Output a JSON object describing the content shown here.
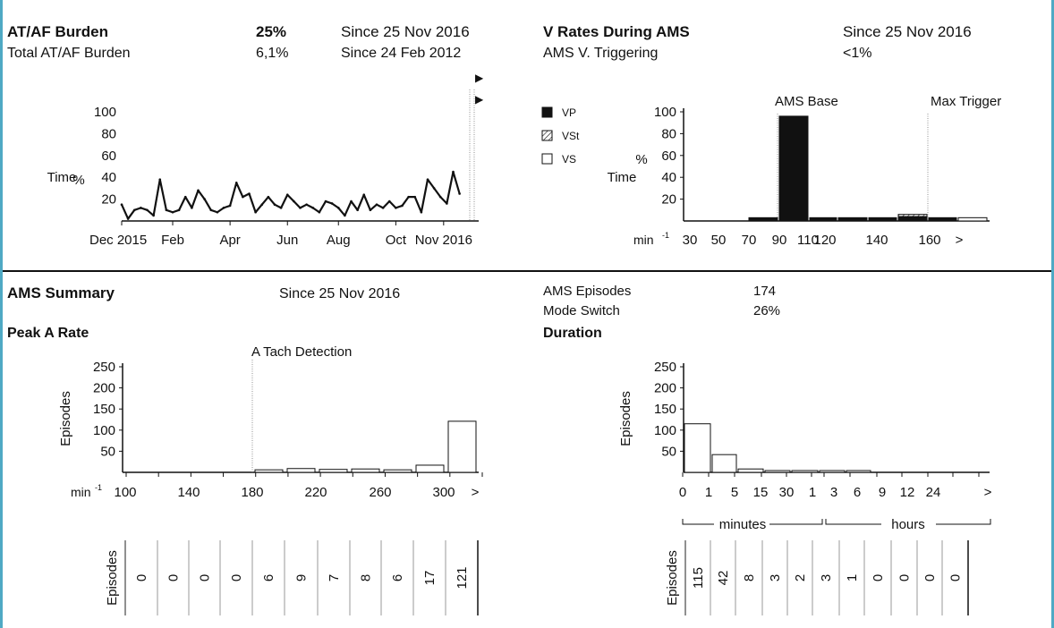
{
  "headers": {
    "burden_title": "AT/AF Burden",
    "burden_value": "25%",
    "burden_since": "Since 25 Nov 2016",
    "total_label": "Total AT/AF Burden",
    "total_value": "6,1%",
    "total_since": "Since 24 Feb 2012",
    "vrates_title": "V Rates During AMS",
    "vrates_since": "Since 25 Nov 2016",
    "trigger_label": "AMS V. Triggering",
    "trigger_value": "<1%",
    "ams_summary_title": "AMS Summary",
    "ams_summary_since": "Since 25 Nov 2016",
    "ams_episodes_label": "AMS Episodes",
    "ams_episodes_value": "174",
    "mode_switch_label": "Mode Switch",
    "mode_switch_value": "26%",
    "peak_title": "Peak A Rate",
    "duration_title": "Duration"
  },
  "chart_data": [
    {
      "type": "line",
      "ylabel": "% Time",
      "ylabel_top": "%",
      "ylabel_bottom": "Time",
      "ylim": [
        0,
        100
      ],
      "yticks": [
        20,
        40,
        60,
        80,
        100
      ],
      "xlim": [
        0,
        56
      ],
      "x_ticks": [
        {
          "x": 0,
          "label": "Dec 2015"
        },
        {
          "x": 8,
          "label": "Feb"
        },
        {
          "x": 17,
          "label": "Apr"
        },
        {
          "x": 26,
          "label": "Jun"
        },
        {
          "x": 34,
          "label": "Aug"
        },
        {
          "x": 43,
          "label": "Oct"
        },
        {
          "x": 50.5,
          "label": "Nov 2016"
        }
      ],
      "x": [
        0,
        1,
        2,
        3,
        4,
        5,
        6,
        7,
        8,
        9,
        10,
        11,
        12,
        13,
        14,
        15,
        16,
        17,
        18,
        19,
        20,
        21,
        22,
        23,
        24,
        25,
        26,
        27,
        28,
        29,
        30,
        31,
        32,
        33,
        34,
        35,
        36,
        37,
        38,
        39,
        40,
        41,
        42,
        43,
        44,
        45,
        46,
        47,
        48,
        49,
        50,
        51,
        52,
        53,
        54,
        55
      ],
      "values": [
        15,
        2,
        10,
        12,
        10,
        5,
        38,
        10,
        8,
        10,
        22,
        12,
        28,
        20,
        10,
        8,
        12,
        14,
        35,
        22,
        25,
        8,
        15,
        22,
        15,
        12,
        24,
        18,
        12,
        15,
        12,
        8,
        18,
        16,
        12,
        5,
        18,
        10,
        24,
        10,
        15,
        12,
        18,
        12,
        14,
        22,
        22,
        8,
        38,
        30,
        22,
        16,
        45,
        25,
        0,
        0
      ],
      "n_points": 54,
      "markers": [
        "▶",
        "▶"
      ]
    },
    {
      "type": "bar",
      "title": "V Rates During AMS",
      "ylabel_top": "%",
      "ylabel_bottom": "Time",
      "ylim": [
        0,
        100
      ],
      "yticks": [
        20,
        40,
        60,
        80,
        100
      ],
      "unit": "min-1",
      "tick_labels": [
        "30",
        "50",
        "70",
        "90",
        "110",
        "120",
        "140",
        "160",
        ">"
      ],
      "legend": [
        {
          "name": "VP",
          "style": "solid"
        },
        {
          "name": "VSt",
          "style": "hatched"
        },
        {
          "name": "VS",
          "style": "open"
        }
      ],
      "bars": [
        {
          "from": 70,
          "to": 80,
          "vp": 3,
          "vst": 0,
          "vs": 0
        },
        {
          "from": 80,
          "to": 90,
          "vp": 96,
          "vst": 0,
          "vs": 0
        },
        {
          "from": 90,
          "to": 100,
          "vp": 3,
          "vst": 0,
          "vs": 0
        },
        {
          "from": 100,
          "to": 110,
          "vp": 3,
          "vst": 0,
          "vs": 0
        },
        {
          "from": 110,
          "to": 120,
          "vp": 3,
          "vst": 0,
          "vs": 0
        },
        {
          "from": 120,
          "to": 130,
          "vp": 4,
          "vst": 2,
          "vs": 0
        },
        {
          "from": 130,
          "to": 140,
          "vp": 3,
          "vst": 0,
          "vs": 0
        },
        {
          "from": 140,
          "to": 150,
          "vp": 0,
          "vst": 0,
          "vs": 3
        }
      ],
      "annotations": [
        {
          "label": "AMS Base",
          "at": 82
        },
        {
          "label": "Max Trigger",
          "at": 137
        }
      ]
    },
    {
      "type": "bar",
      "title": "Peak A Rate",
      "ylabel": "Episodes",
      "ylim": [
        0,
        250
      ],
      "yticks": [
        50,
        100,
        150,
        200,
        250
      ],
      "unit": "min-1",
      "tick_labels": [
        "100",
        "140",
        "180",
        "220",
        "260",
        "300",
        ">"
      ],
      "bins": [
        "100",
        "120",
        "140",
        "160",
        "180",
        "200",
        "220",
        "240",
        "260",
        "280",
        ">"
      ],
      "values": [
        0,
        0,
        0,
        0,
        6,
        9,
        7,
        8,
        6,
        17,
        121
      ],
      "table_label": "Episodes",
      "annotations": [
        {
          "label": "A Tach Detection",
          "at": 180
        }
      ]
    },
    {
      "type": "bar",
      "title": "Duration",
      "ylabel": "Episodes",
      "ylim": [
        0,
        250
      ],
      "yticks": [
        50,
        100,
        150,
        200,
        250
      ],
      "tick_labels": [
        "0",
        "1",
        "5",
        "15",
        "30",
        "1",
        "3",
        "6",
        "9",
        "12",
        "24",
        ">"
      ],
      "group_labels": [
        "minutes",
        "hours"
      ],
      "values": [
        115,
        42,
        8,
        3,
        2,
        3,
        1,
        0,
        0,
        0,
        0
      ],
      "table_label": "Episodes"
    }
  ]
}
